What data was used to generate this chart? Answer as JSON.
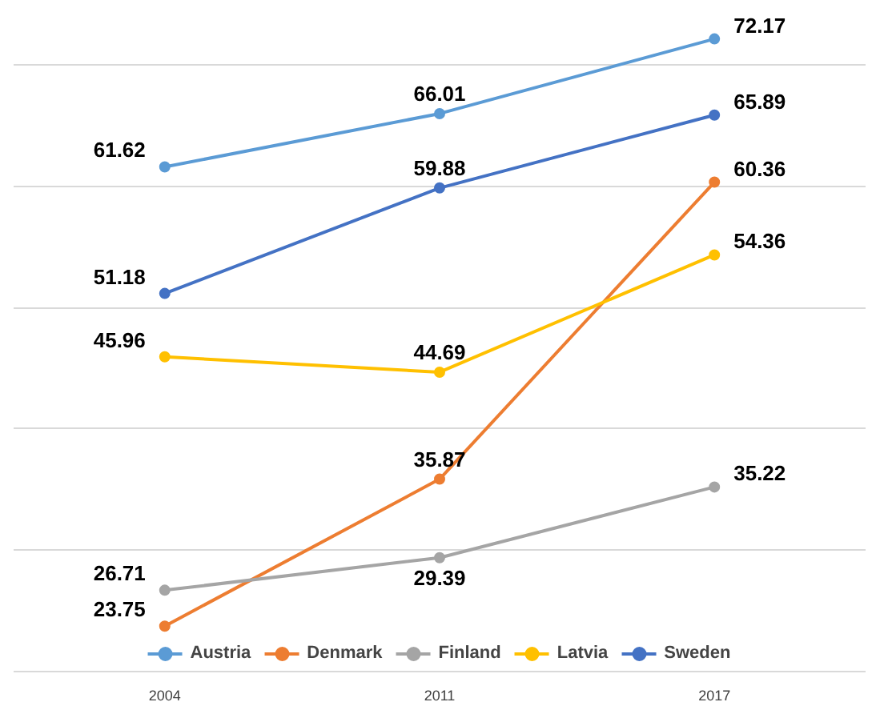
{
  "chart_data": {
    "type": "line",
    "categories": [
      "2004",
      "2011",
      "2017"
    ],
    "series": [
      {
        "name": "Austria",
        "color": "#5b9bd5",
        "values": [
          61.62,
          66.01,
          72.17
        ]
      },
      {
        "name": "Denmark",
        "color": "#ed7d31",
        "values": [
          23.75,
          35.87,
          60.36
        ]
      },
      {
        "name": "Finland",
        "color": "#a5a5a5",
        "values": [
          26.71,
          29.39,
          35.22
        ]
      },
      {
        "name": "Latvia",
        "color": "#ffc000",
        "values": [
          45.96,
          44.69,
          54.36
        ]
      },
      {
        "name": "Sweden",
        "color": "#4472c4",
        "values": [
          51.18,
          59.88,
          65.89
        ]
      }
    ],
    "yticks": [
      {
        "value": 20,
        "label": null
      },
      {
        "value": 30,
        "label": null
      },
      {
        "value": 40,
        "label": null
      },
      {
        "value": 50,
        "label": null
      },
      {
        "value": 60,
        "label": null
      },
      {
        "value": 70,
        "label": null
      }
    ],
    "grid": "y",
    "legend": "bottom",
    "marker": "circle",
    "line_style": "solid",
    "data_labels": true,
    "tick_labels": "x"
  }
}
